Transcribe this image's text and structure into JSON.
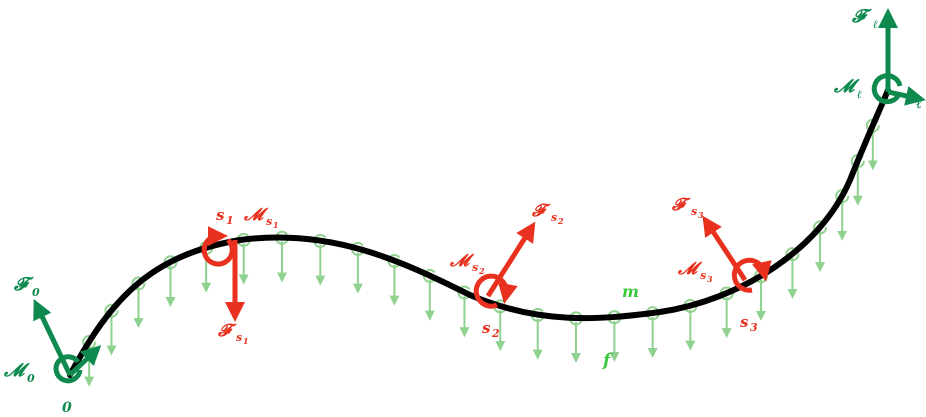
{
  "colors": {
    "rod": "#000000",
    "boundary": "#0e8a4f",
    "point_load": "#e8321f",
    "distributed": "#8fd18f",
    "label_f": "#3cc83c"
  },
  "labels": {
    "start_point": "0",
    "end_point": "ℓ",
    "force_start": "𝓕",
    "force_start_sub": "0",
    "moment_start": "𝓜",
    "moment_start_sub": "0",
    "force_end": "𝓕",
    "force_end_sub": "ℓ",
    "moment_end": "𝓜",
    "moment_end_sub": "ℓ",
    "s1": "s",
    "s1_sub": "1",
    "s2": "s",
    "s2_sub": "2",
    "s3": "s",
    "s3_sub": "3",
    "F_s1": "𝓕",
    "F_s1_sub": "s",
    "F_s1_subsub": "1",
    "M_s1": "𝓜",
    "M_s1_sub": "s",
    "M_s1_subsub": "1",
    "F_s2": "𝓕",
    "F_s2_sub": "s",
    "F_s2_subsub": "2",
    "M_s2": "𝓜",
    "M_s2_sub": "s",
    "M_s2_subsub": "2",
    "F_s3": "𝓕",
    "F_s3_sub": "s",
    "F_s3_subsub": "3",
    "M_s3": "𝓜",
    "M_s3_sub": "s",
    "M_s3_subsub": "3",
    "distributed_moment": "m",
    "distributed_force": "f"
  }
}
